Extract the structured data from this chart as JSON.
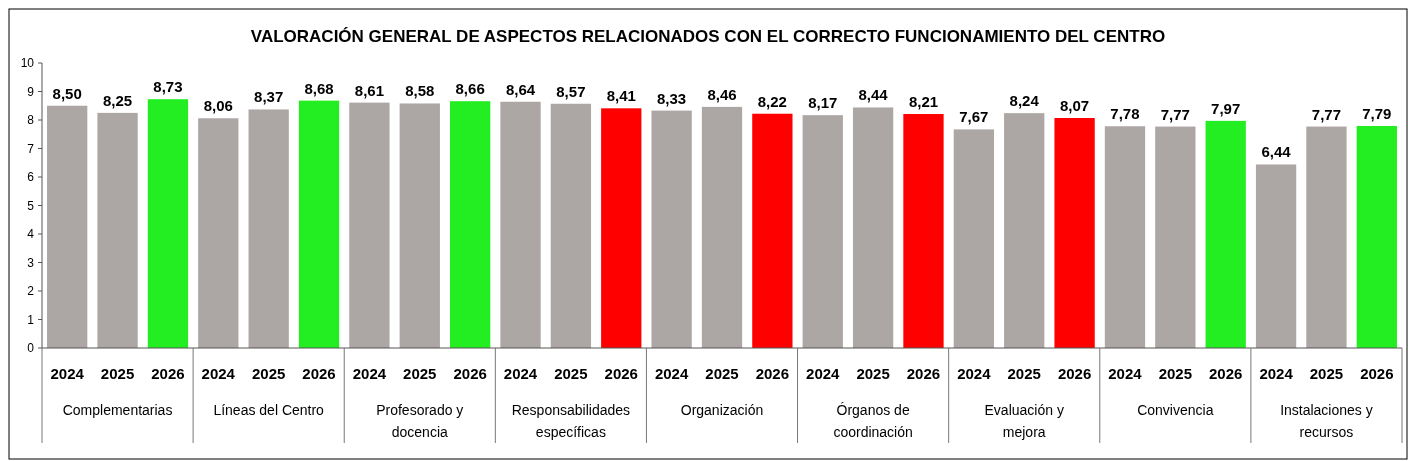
{
  "chart_data": {
    "type": "bar",
    "title": "VALORACIÓN GENERAL  DE ASPECTOS RELACIONADOS CON EL CORRECTO FUNCIONAMIENTO DEL CENTRO",
    "categories": [
      "2024",
      "2025",
      "2026",
      "2024",
      "2025",
      "2026",
      "2024",
      "2025",
      "2026",
      "2024",
      "2025",
      "2026",
      "2024",
      "2025",
      "2026",
      "2024",
      "2025",
      "2026",
      "2024",
      "2025",
      "2026",
      "2024",
      "2025",
      "2026",
      "2024",
      "2025",
      "2026"
    ],
    "values": [
      8.5,
      8.25,
      8.73,
      8.06,
      8.37,
      8.68,
      8.61,
      8.58,
      8.66,
      8.64,
      8.57,
      8.41,
      8.33,
      8.46,
      8.22,
      8.17,
      8.44,
      8.21,
      7.67,
      8.24,
      8.07,
      7.78,
      7.77,
      7.97,
      6.44,
      7.77,
      7.79
    ],
    "value_labels": [
      "8,50",
      "8,25",
      "8,73",
      "8,06",
      "8,37",
      "8,68",
      "8,61",
      "8,58",
      "8,66",
      "8,64",
      "8,57",
      "8,41",
      "8,33",
      "8,46",
      "8,22",
      "8,17",
      "8,44",
      "8,21",
      "7,67",
      "8,24",
      "8,07",
      "7,78",
      "7,77",
      "7,97",
      "6,44",
      "7,77",
      "7,79"
    ],
    "colors": [
      "#aca6a4",
      "#aca6a4",
      "#22ee22",
      "#aca6a4",
      "#aca6a4",
      "#22ee22",
      "#aca6a4",
      "#aca6a4",
      "#22ee22",
      "#aca6a4",
      "#aca6a4",
      "#ff0000",
      "#aca6a4",
      "#aca6a4",
      "#ff0000",
      "#aca6a4",
      "#aca6a4",
      "#ff0000",
      "#aca6a4",
      "#aca6a4",
      "#ff0000",
      "#aca6a4",
      "#aca6a4",
      "#22ee22",
      "#aca6a4",
      "#aca6a4",
      "#22ee22"
    ],
    "annotations": [
      "Complementarias",
      "Líneas del Centro",
      "Profesorado y docencia",
      "Responsabilidades específicas",
      "Organización",
      "Órganos de coordinación",
      "Evaluación y mejora",
      "Convivencia",
      "Instalaciones y recursos"
    ],
    "ylim": [
      0,
      10
    ],
    "yticks": [
      0,
      1,
      2,
      3,
      4,
      5,
      6,
      7,
      8,
      9,
      10
    ]
  }
}
